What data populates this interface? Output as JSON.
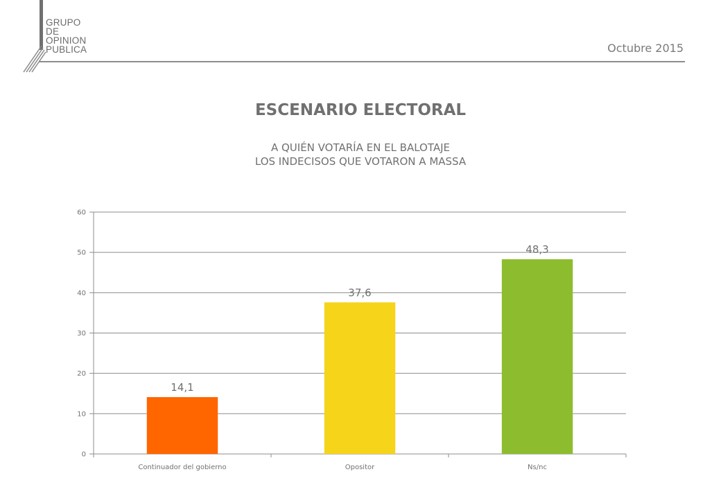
{
  "header": {
    "logo_lines": [
      "GRUPO",
      "DE",
      "OPINION",
      "PUBLICA"
    ],
    "date": "Octubre 2015"
  },
  "main": {
    "title": "ESCENARIO ELECTORAL",
    "subtitle_lines": [
      "A QUIÉN VOTARÍA EN EL BALOTAJE",
      "LOS INDECISOS QUE VOTARON A MASSA"
    ]
  },
  "colors": {
    "bar_continuador": "#ff6600",
    "bar_opositor": "#f5d41a",
    "bar_nsnc": "#8dbd2f",
    "grid": "#8c8c8c",
    "text": "#707070"
  },
  "chart_data": {
    "type": "bar",
    "categories": [
      "Continuador del gobierno",
      "Opositor",
      "Ns/nc"
    ],
    "values": [
      14.1,
      37.6,
      48.3
    ],
    "data_labels": [
      "14,1",
      "37,6",
      "48,3"
    ],
    "ylim": [
      0,
      60
    ],
    "yticks": [
      0,
      10,
      20,
      30,
      40,
      50,
      60
    ],
    "title": "",
    "xlabel": "",
    "ylabel": "",
    "grid": true,
    "legend": "none"
  }
}
